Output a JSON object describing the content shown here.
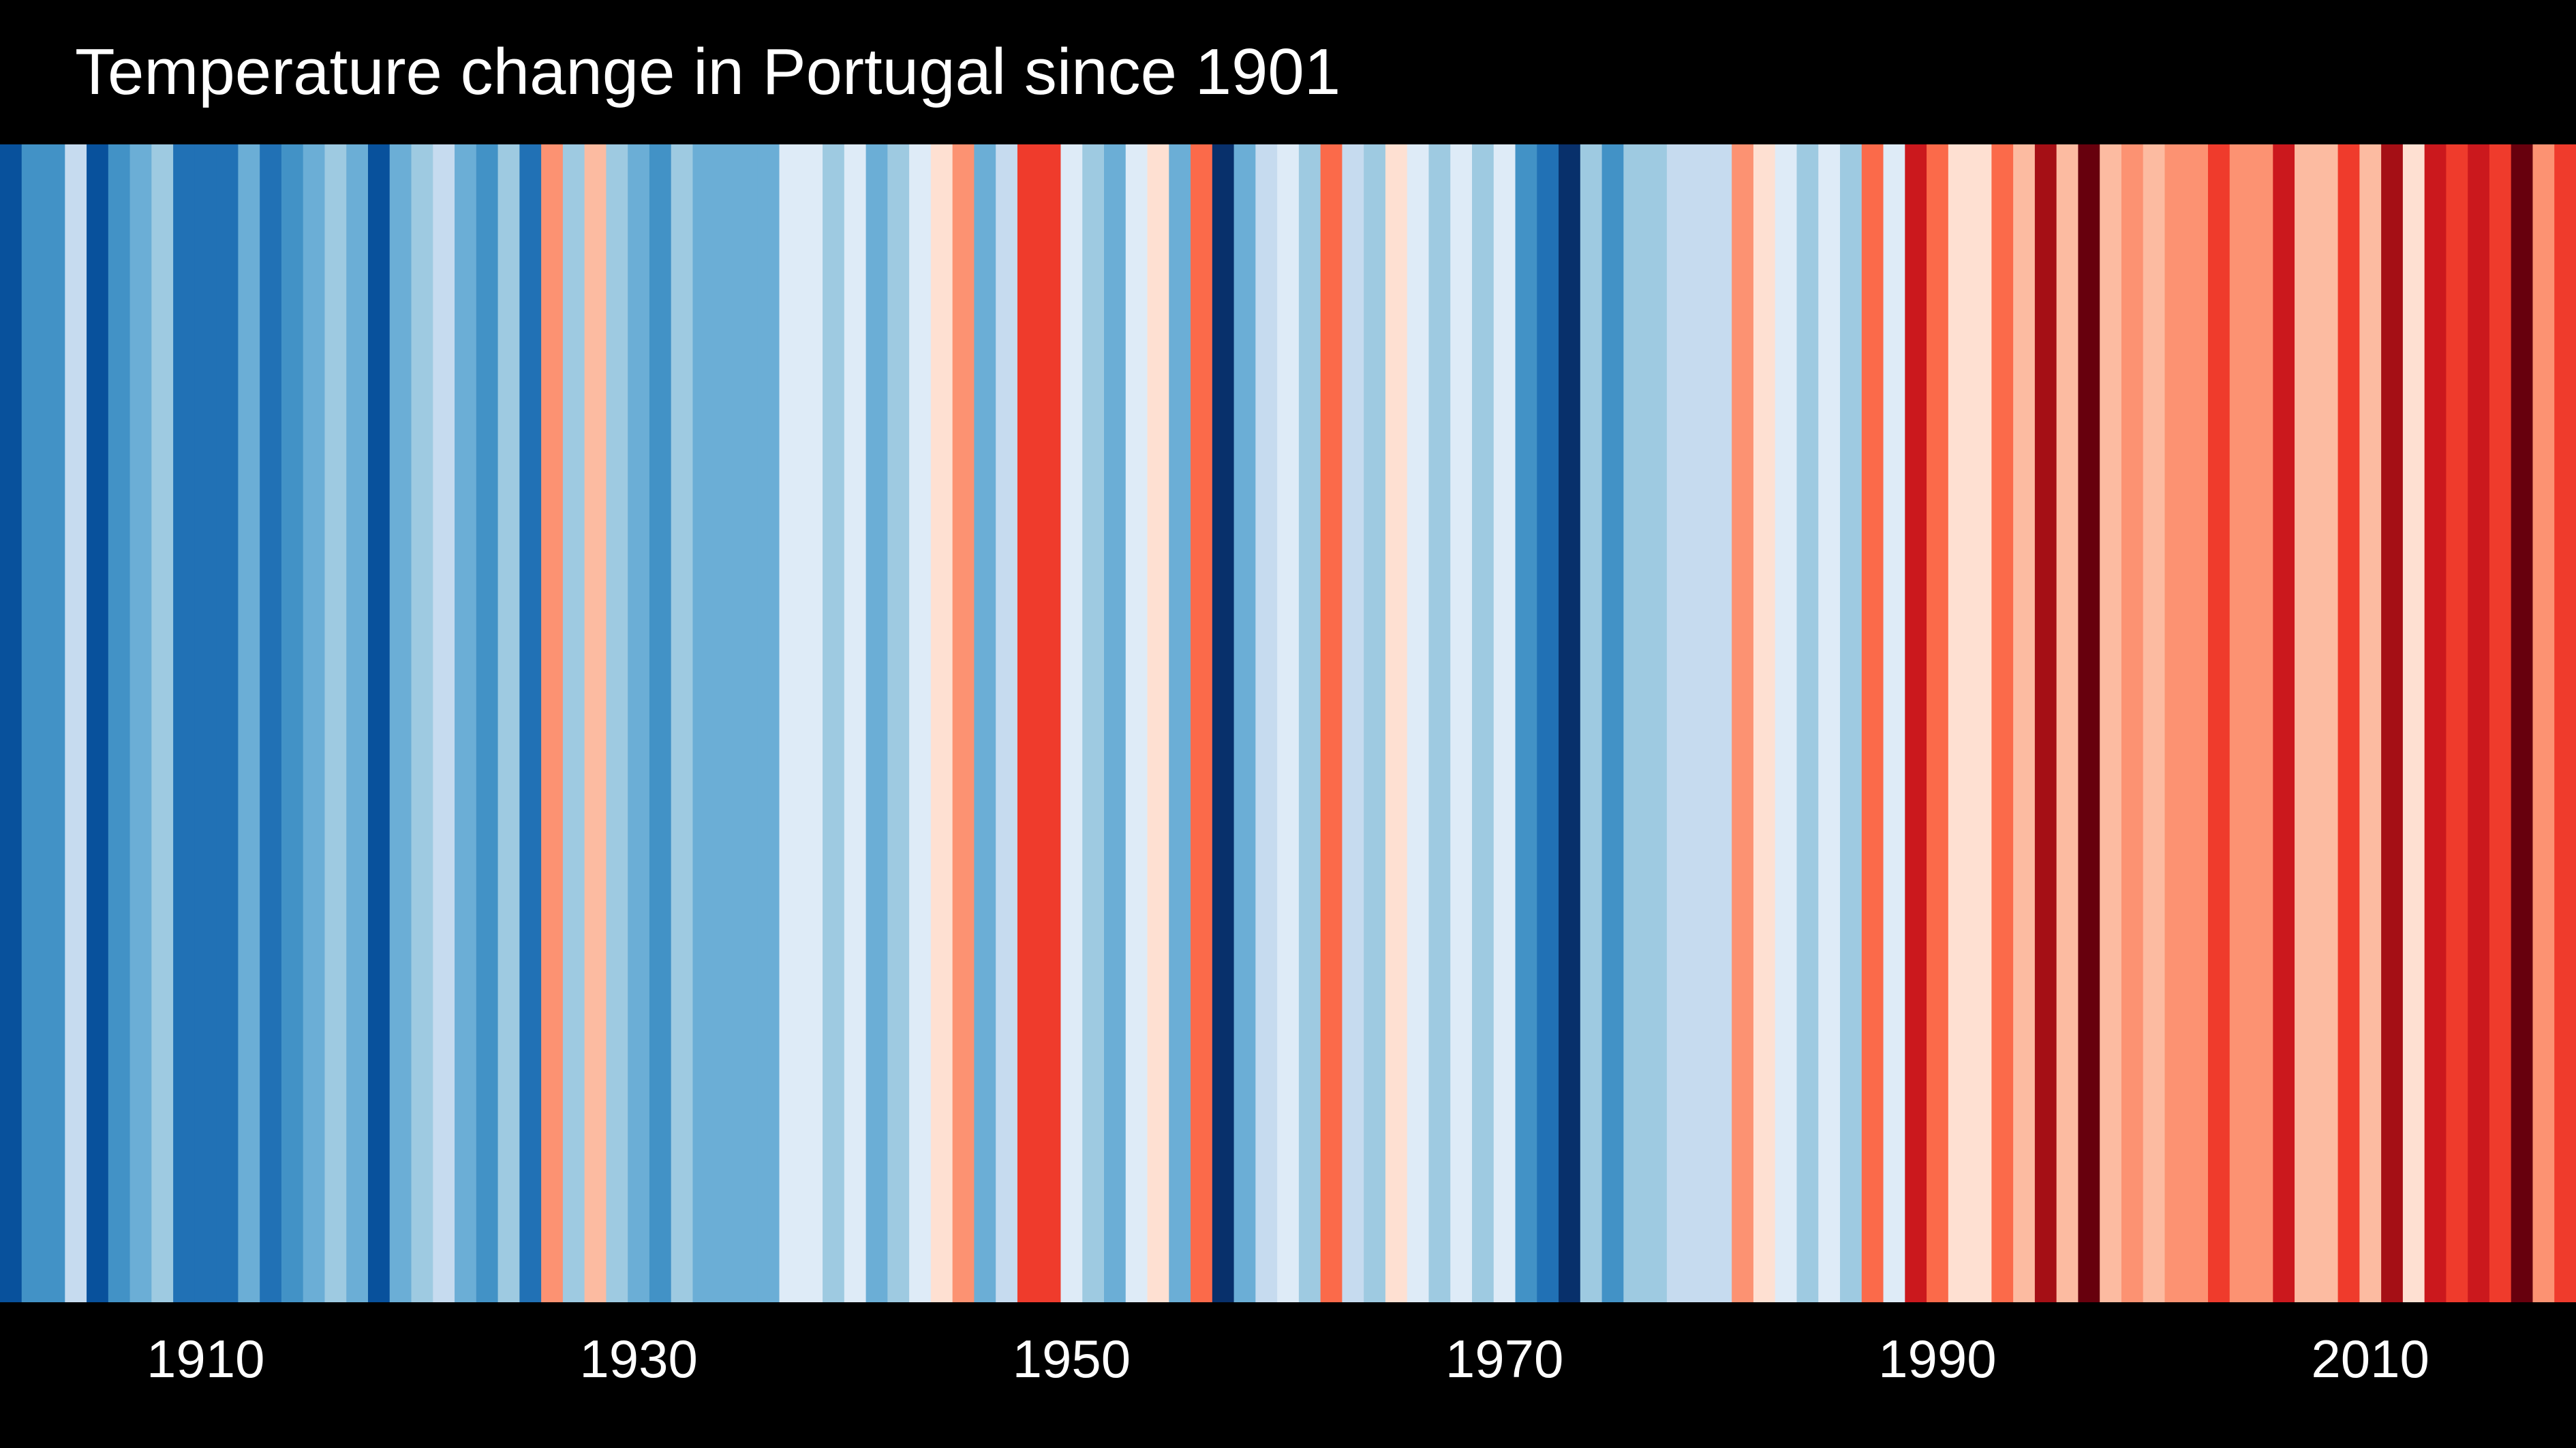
{
  "chart_data": {
    "type": "heatmap",
    "title": "Temperature change in Portugal since 1901",
    "xlabel": "",
    "ylabel": "",
    "x_range": [
      1901,
      2019
    ],
    "grid": false,
    "legend": "none",
    "x_tick_labels": [
      "1910",
      "1930",
      "1950",
      "1970",
      "1990",
      "2010"
    ],
    "x_ticks": [
      1910,
      1930,
      1950,
      1970,
      1990,
      2010
    ],
    "years": [
      1901,
      1902,
      1903,
      1904,
      1905,
      1906,
      1907,
      1908,
      1909,
      1910,
      1911,
      1912,
      1913,
      1914,
      1915,
      1916,
      1917,
      1918,
      1919,
      1920,
      1921,
      1922,
      1923,
      1924,
      1925,
      1926,
      1927,
      1928,
      1929,
      1930,
      1931,
      1932,
      1933,
      1934,
      1935,
      1936,
      1937,
      1938,
      1939,
      1940,
      1941,
      1942,
      1943,
      1944,
      1945,
      1946,
      1947,
      1948,
      1949,
      1950,
      1951,
      1952,
      1953,
      1954,
      1955,
      1956,
      1957,
      1958,
      1959,
      1960,
      1961,
      1962,
      1963,
      1964,
      1965,
      1966,
      1967,
      1968,
      1969,
      1970,
      1971,
      1972,
      1973,
      1974,
      1975,
      1976,
      1977,
      1978,
      1979,
      1980,
      1981,
      1982,
      1983,
      1984,
      1985,
      1986,
      1987,
      1988,
      1989,
      1990,
      1991,
      1992,
      1993,
      1994,
      1995,
      1996,
      1997,
      1998,
      1999,
      2000,
      2001,
      2002,
      2003,
      2004,
      2005,
      2006,
      2007,
      2008,
      2009,
      2010,
      2011,
      2012,
      2013,
      2014,
      2015,
      2016,
      2017,
      2018,
      2019
    ],
    "colors": [
      "#08519c",
      "#4292c6",
      "#4292c6",
      "#c6dbef",
      "#08519c",
      "#4292c6",
      "#6baed6",
      "#9ecae1",
      "#2171b5",
      "#2171b5",
      "#2171b5",
      "#6baed6",
      "#2171b5",
      "#4292c6",
      "#6baed6",
      "#9ecae1",
      "#6baed6",
      "#08519c",
      "#6baed6",
      "#9ecae1",
      "#c6dbef",
      "#6baed6",
      "#4292c6",
      "#9ecae1",
      "#2171b5",
      "#fc9272",
      "#9ecae1",
      "#fcbba1",
      "#9ecae1",
      "#6baed6",
      "#4292c6",
      "#9ecae1",
      "#6baed6",
      "#6baed6",
      "#6baed6",
      "#6baed6",
      "#deebf7",
      "#deebf7",
      "#9ecae1",
      "#deebf7",
      "#6baed6",
      "#9ecae1",
      "#deebf7",
      "#fee0d2",
      "#fc9272",
      "#6baed6",
      "#c6dbef",
      "#ef3b2c",
      "#ef3b2c",
      "#deebf7",
      "#9ecae1",
      "#6baed6",
      "#deebf7",
      "#fee0d2",
      "#6baed6",
      "#fb6a4a",
      "#08306b",
      "#6baed6",
      "#c6dbef",
      "#deebf7",
      "#9ecae1",
      "#fb6a4a",
      "#c6dbef",
      "#9ecae1",
      "#fee0d2",
      "#deebf7",
      "#9ecae1",
      "#deebf7",
      "#9ecae1",
      "#deebf7",
      "#4292c6",
      "#2171b5",
      "#08306b",
      "#9ecae1",
      "#4292c6",
      "#9ecae1",
      "#9ecae1",
      "#c6dbef",
      "#c6dbef",
      "#c6dbef",
      "#fc9272",
      "#fee0d2",
      "#deebf7",
      "#9ecae1",
      "#deebf7",
      "#9ecae1",
      "#fb6a4a",
      "#deebf7",
      "#cb181d",
      "#fb6a4a",
      "#fee0d2",
      "#fee0d2",
      "#fb6a4a",
      "#fcbba1",
      "#a50f15",
      "#fcbba1",
      "#67000d",
      "#fcbba1",
      "#fc9272",
      "#fcbba1",
      "#fc9272",
      "#fc9272",
      "#ef3b2c",
      "#fc9272",
      "#fc9272",
      "#cb181d",
      "#fcbba1",
      "#fcbba1",
      "#ef3b2c",
      "#fcbba1",
      "#a50f15",
      "#fee0d2",
      "#cb181d",
      "#ef3b2c",
      "#cb181d",
      "#ef3b2c",
      "#67000d",
      "#fc9272",
      "#ef3b2c"
    ]
  }
}
